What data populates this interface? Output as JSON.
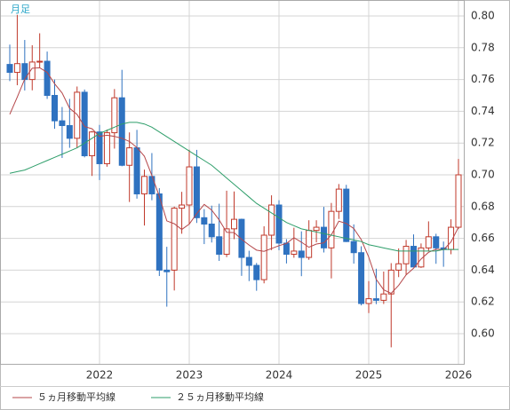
{
  "chart_data": {
    "type": "candlestick",
    "label": "月足",
    "categories": [
      null,
      null,
      null,
      null,
      null,
      null,
      null,
      null,
      null,
      null,
      null,
      null,
      "2022",
      null,
      null,
      null,
      null,
      null,
      null,
      null,
      null,
      null,
      null,
      null,
      "2023",
      null,
      null,
      null,
      null,
      null,
      null,
      null,
      null,
      null,
      null,
      null,
      "2024",
      null,
      null,
      null,
      null,
      null,
      null,
      null,
      null,
      null,
      null,
      null,
      "2025",
      null,
      null,
      null,
      null,
      null,
      null,
      null,
      null,
      null,
      null,
      null,
      "2026"
    ],
    "candles": {
      "up_color": "#c0392b",
      "down_color": "#2f72c0",
      "open": [
        0.7695,
        0.7645,
        0.77,
        0.76,
        0.771,
        0.7715,
        0.75,
        0.734,
        0.731,
        0.723,
        0.752,
        0.712,
        0.727,
        0.707,
        0.7265,
        0.7485,
        0.706,
        0.717,
        0.688,
        0.699,
        0.688,
        0.64,
        0.64,
        0.679,
        0.681,
        0.705,
        0.673,
        0.669,
        0.661,
        0.65,
        0.666,
        0.672,
        0.648,
        0.643,
        0.634,
        0.662,
        0.681,
        0.657,
        0.65,
        0.652,
        0.648,
        0.665,
        0.667,
        0.654,
        0.677,
        0.691,
        0.658,
        0.651,
        0.619,
        0.622,
        0.621,
        0.625,
        0.64,
        0.644,
        0.655,
        0.642,
        0.654,
        0.661,
        0.654,
        0.653,
        0.667
      ],
      "high": [
        0.782,
        0.8007,
        0.7849,
        0.7816,
        0.7891,
        0.7776,
        0.76,
        0.7427,
        0.7478,
        0.7556,
        0.7537,
        0.7276,
        0.7314,
        0.7285,
        0.754,
        0.7661,
        0.7267,
        0.7283,
        0.7033,
        0.7137,
        0.6916,
        0.6547,
        0.68,
        0.6893,
        0.7158,
        0.7157,
        0.6784,
        0.6806,
        0.6818,
        0.69,
        0.6895,
        0.6724,
        0.6522,
        0.6445,
        0.6676,
        0.6871,
        0.684,
        0.6595,
        0.6667,
        0.6644,
        0.6714,
        0.6714,
        0.6798,
        0.6823,
        0.6942,
        0.6937,
        0.6688,
        0.655,
        0.6331,
        0.6409,
        0.6391,
        0.6444,
        0.6537,
        0.659,
        0.6625,
        0.6568,
        0.6707,
        0.6629,
        0.658,
        0.672,
        0.71
      ],
      "low": [
        0.759,
        0.7564,
        0.7531,
        0.7532,
        0.7675,
        0.7478,
        0.729,
        0.7106,
        0.717,
        0.717,
        0.711,
        0.6993,
        0.6967,
        0.7051,
        0.7165,
        0.7054,
        0.6829,
        0.685,
        0.6681,
        0.684,
        0.6363,
        0.617,
        0.6272,
        0.6629,
        0.6688,
        0.6697,
        0.6564,
        0.6574,
        0.6458,
        0.6482,
        0.6595,
        0.6364,
        0.6331,
        0.627,
        0.6317,
        0.6526,
        0.6525,
        0.6442,
        0.6478,
        0.6362,
        0.6465,
        0.6575,
        0.6511,
        0.6348,
        0.6722,
        0.6577,
        0.6441,
        0.6178,
        0.613,
        0.6186,
        0.6187,
        0.5914,
        0.6356,
        0.6372,
        0.6418,
        0.6414,
        0.6521,
        0.644,
        0.6421,
        0.65,
        0.666
      ],
      "close": [
        0.7645,
        0.77,
        0.76,
        0.771,
        0.7715,
        0.75,
        0.734,
        0.731,
        0.723,
        0.752,
        0.712,
        0.727,
        0.707,
        0.7265,
        0.7485,
        0.706,
        0.717,
        0.688,
        0.699,
        0.688,
        0.64,
        0.639,
        0.679,
        0.681,
        0.705,
        0.673,
        0.669,
        0.661,
        0.65,
        0.666,
        0.672,
        0.648,
        0.643,
        0.634,
        0.662,
        0.681,
        0.657,
        0.65,
        0.652,
        0.648,
        0.665,
        0.667,
        0.654,
        0.677,
        0.691,
        0.658,
        0.651,
        0.619,
        0.622,
        0.621,
        0.625,
        0.64,
        0.644,
        0.655,
        0.642,
        0.654,
        0.661,
        0.654,
        0.653,
        0.667,
        0.7
      ]
    },
    "series": [
      {
        "name": "５ヵ月移動平均線",
        "color": "#b5474a",
        "values": [
          0.7381,
          0.7489,
          0.7603,
          0.7671,
          0.7674,
          0.7645,
          0.7573,
          0.7515,
          0.7419,
          0.738,
          0.7304,
          0.729,
          0.7242,
          0.7249,
          0.7242,
          0.723,
          0.721,
          0.7172,
          0.7117,
          0.6996,
          0.6864,
          0.671,
          0.6692,
          0.6656,
          0.669,
          0.6756,
          0.6814,
          0.6778,
          0.6716,
          0.6638,
          0.6636,
          0.6594,
          0.6558,
          0.6526,
          0.6518,
          0.6536,
          0.6554,
          0.6568,
          0.6604,
          0.6576,
          0.6544,
          0.6564,
          0.6572,
          0.6622,
          0.6708,
          0.6694,
          0.6662,
          0.6592,
          0.6482,
          0.6342,
          0.6276,
          0.6254,
          0.6304,
          0.637,
          0.6412,
          0.647,
          0.6512,
          0.6532,
          0.6528,
          0.6578,
          0.667
        ]
      },
      {
        "name": "２５ヵ月移動平均線",
        "color": "#2e9e6a",
        "values": [
          0.701,
          0.702,
          0.703,
          0.705,
          0.707,
          0.709,
          0.711,
          0.713,
          0.715,
          0.717,
          0.72,
          0.723,
          0.726,
          0.728,
          0.73,
          0.732,
          0.733,
          0.733,
          0.732,
          0.73,
          0.727,
          0.724,
          0.721,
          0.718,
          0.715,
          0.712,
          0.709,
          0.706,
          0.702,
          0.698,
          0.694,
          0.69,
          0.686,
          0.682,
          0.679,
          0.676,
          0.673,
          0.67,
          0.668,
          0.666,
          0.665,
          0.664,
          0.663,
          0.662,
          0.661,
          0.66,
          0.659,
          0.658,
          0.656,
          0.655,
          0.654,
          0.653,
          0.652,
          0.652,
          0.652,
          0.652,
          0.652,
          0.652,
          0.653,
          0.653,
          0.653
        ]
      }
    ],
    "ylim": [
      0.581,
      0.8095
    ],
    "yticks": [
      {
        "value": 0.6,
        "label": "0.60"
      },
      0.62,
      0.64,
      0.66,
      0.68,
      {
        "value": 0.7,
        "label": "0.70"
      },
      0.72,
      0.74,
      0.76,
      0.78,
      {
        "value": 0.8,
        "label": "0.80"
      }
    ],
    "grid": true,
    "legend": "bottom-left"
  }
}
